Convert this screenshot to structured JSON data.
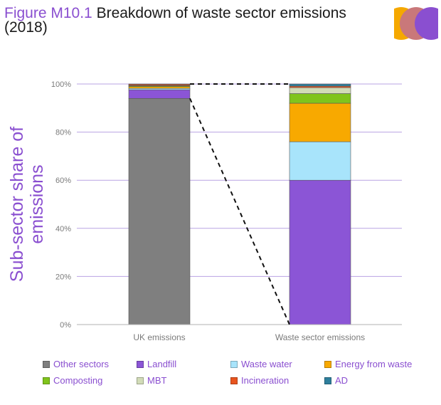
{
  "title": {
    "figure_label": "Figure M10.1",
    "text": "Breakdown of waste sector emissions",
    "year": "(2018)"
  },
  "logo": {
    "icon": "three-overlapping-circles-logo",
    "colors": [
      "#f5a800",
      "#c9787a",
      "#8a4fd0"
    ]
  },
  "colors": {
    "accent": "#8a4fd0",
    "grid": "#b9a3e3",
    "axis_text": "#7a7a7a"
  },
  "chart_data": {
    "type": "bar",
    "stacked": true,
    "categories": [
      "UK emissions",
      "Waste sector emissions"
    ],
    "ylabel": "Sub-sector share of emissions",
    "xlabel": "",
    "ylim": [
      0,
      100
    ],
    "yticks": [
      "0%",
      "20%",
      "40%",
      "60%",
      "80%",
      "100%"
    ],
    "grid": true,
    "legend_position": "bottom",
    "series": [
      {
        "name": "Other sectors",
        "color": "#7f7f7f",
        "values": [
          94,
          0
        ]
      },
      {
        "name": "Landfill",
        "color": "#8b55d6",
        "values": [
          3.6,
          60
        ]
      },
      {
        "name": "Waste water",
        "color": "#a8e4fb",
        "values": [
          0.6,
          16
        ]
      },
      {
        "name": "Energy from waste",
        "color": "#f8a900",
        "values": [
          0.7,
          16
        ]
      },
      {
        "name": "Composting",
        "color": "#80c41c",
        "values": [
          0.3,
          4
        ]
      },
      {
        "name": "MBT",
        "color": "#d2dcb8",
        "values": [
          0.2,
          2.5
        ]
      },
      {
        "name": "Incineration",
        "color": "#e8541e",
        "values": [
          0.5,
          0.6
        ]
      },
      {
        "name": "AD",
        "color": "#2e7f9c",
        "values": [
          0.1,
          0.9
        ]
      }
    ],
    "annotations": [
      "dashed connector from top of UK waste segment to top and bottom of waste sector bar"
    ]
  }
}
